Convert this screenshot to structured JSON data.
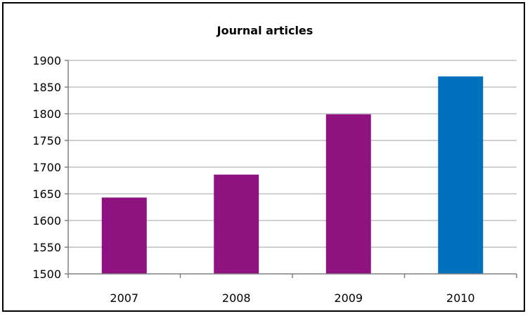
{
  "chart_data": {
    "type": "bar",
    "title": "Journal articles",
    "xlabel": "",
    "ylabel": "",
    "categories": [
      "2007",
      "2008",
      "2009",
      "2010"
    ],
    "values": [
      1643,
      1686,
      1799,
      1870
    ],
    "bar_colors": [
      "#8E1380",
      "#8E1380",
      "#8E1380",
      "#0071BC"
    ],
    "ylim": [
      1500,
      1900
    ],
    "yticks": [
      "1500",
      "1550",
      "1600",
      "1650",
      "1700",
      "1750",
      "1800",
      "1850",
      "1900"
    ],
    "grid": true,
    "legend": "none"
  },
  "colors": {
    "gridline": "#C0C0C0",
    "axis": "#808080",
    "border": "#000000"
  }
}
